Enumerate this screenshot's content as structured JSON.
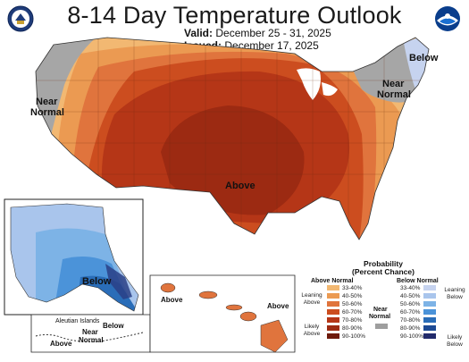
{
  "header": {
    "title": "8-14 Day Temperature Outlook",
    "valid_label": "Valid:",
    "valid_value": "December 25 - 31, 2025",
    "issued_label": "Issued:",
    "issued_value": "December 17, 2025"
  },
  "logos": {
    "left": "doc-seal-icon",
    "right": "noaa-logo-icon"
  },
  "regions": {
    "conus_above": "Above",
    "west_near_1": "Near",
    "west_near_2": "Normal",
    "ne_below": "Below",
    "ne_near_1": "Near",
    "ne_near_2": "Normal",
    "alaska_below": "Below",
    "aleutian_label": "Aleutian Islands",
    "aleutian_below": "Below",
    "aleutian_near_1": "Near",
    "aleutian_near_2": "Normal",
    "aleutian_above": "Above",
    "hawaii_above_1": "Above",
    "hawaii_above_2": "Above"
  },
  "legend": {
    "title_1": "Probability",
    "title_2": "(Percent Chance)",
    "above_header": "Above Normal",
    "below_header": "Below Normal",
    "near_1": "Near",
    "near_2": "Normal",
    "leaning_above_1": "Leaning",
    "leaning_above_2": "Above",
    "likely_above_1": "Likely",
    "likely_above_2": "Above",
    "leaning_below_1": "Leaning",
    "leaning_below_2": "Below",
    "likely_below_1": "Likely",
    "likely_below_2": "Below",
    "bins": [
      "33-40%",
      "40-50%",
      "50-60%",
      "60-70%",
      "70-80%",
      "80-90%",
      "90-100%"
    ],
    "above_colors": [
      "#f2b872",
      "#eb9a52",
      "#e0743d",
      "#cc4d1f",
      "#b53617",
      "#9c2a12",
      "#6e1a0c"
    ],
    "below_colors": [
      "#c6d3ef",
      "#a9c5ec",
      "#7db3e6",
      "#4b93d9",
      "#2a6db8",
      "#1d4a94",
      "#222b6b"
    ],
    "near_color": "#9e9e9e"
  },
  "colors": {
    "near_normal": "#a6a6a6",
    "above_33_40": "#f2b872",
    "above_40_50": "#eb9a52",
    "above_50_60": "#e0743d",
    "above_60_70": "#cc4d1f",
    "above_70_80": "#b53617",
    "above_80_90": "#9c2a12",
    "below_33_40": "#c6d3ef",
    "below_40_50": "#a9c5ec",
    "below_50_60": "#7db3e6",
    "below_60_70": "#4b93d9",
    "below_70_80": "#2a6db8",
    "below_80_90": "#1d4a94"
  }
}
